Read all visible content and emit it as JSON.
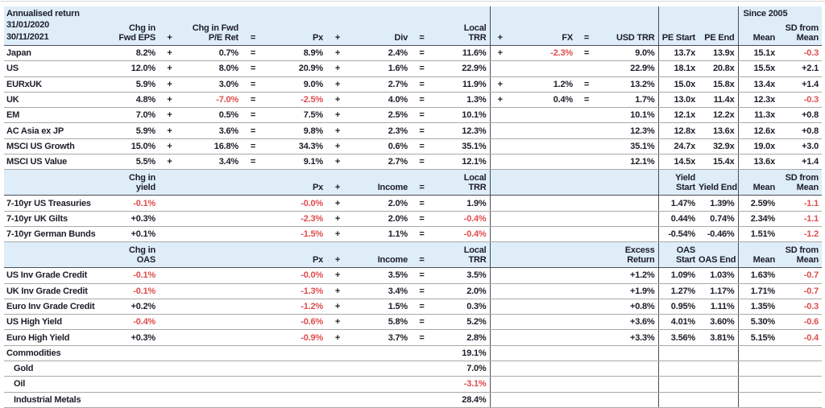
{
  "palette": {
    "header_bg": "#deedf8",
    "text": "#1d1d29",
    "negative_red": "#e14b4b",
    "row_line": "#a9a9a9",
    "section_line": "#4d4d55",
    "background": "#ffffff"
  },
  "chart_data": {
    "type": "table",
    "title": "Annualised return",
    "period": [
      "31/01/2020",
      "30/11/2021"
    ],
    "since_label": "Since 2005",
    "column_keys": [
      "v1",
      "op1",
      "v2",
      "op2",
      "px",
      "op3",
      "div",
      "op4",
      "local-trr",
      "op5",
      "fx",
      "op6",
      "usd-trr",
      "pe-start",
      "pe-end",
      "mean",
      "sd-from-mean"
    ],
    "sections": [
      {
        "name": "equities",
        "header": [
          "Chg in|Fwd EPS",
          "+",
          "Chg in Fwd|P/E Ret",
          "=",
          "Px",
          "+",
          "Div",
          "=",
          "Local|TRR",
          "+",
          "FX",
          "=",
          "USD TRR",
          "PE Start",
          "PE End",
          "Mean",
          "SD from|Mean"
        ],
        "rows": [
          {
            "label": "Japan",
            "indent": false,
            "cells": [
              "8.2%",
              "+",
              "0.7%",
              "=",
              "8.9%",
              "+",
              "2.4%",
              "=",
              "11.6%",
              "+",
              "-2.3%",
              "=",
              "9.0%",
              "13.7x",
              "13.9x",
              "15.1x",
              "-0.3"
            ],
            "neg": [
              10,
              16
            ]
          },
          {
            "label": "US",
            "indent": false,
            "cells": [
              "12.0%",
              "+",
              "8.0%",
              "=",
              "20.9%",
              "+",
              "1.6%",
              "=",
              "22.9%",
              "",
              "",
              "",
              "22.9%",
              "18.1x",
              "20.8x",
              "15.5x",
              "+2.1"
            ],
            "neg": []
          },
          {
            "label": "EURxUK",
            "indent": false,
            "cells": [
              "5.9%",
              "+",
              "3.0%",
              "=",
              "9.0%",
              "+",
              "2.7%",
              "=",
              "11.9%",
              "+",
              "1.2%",
              "=",
              "13.2%",
              "15.0x",
              "15.8x",
              "13.4x",
              "+1.4"
            ],
            "neg": []
          },
          {
            "label": "UK",
            "indent": false,
            "cells": [
              "4.8%",
              "+",
              "-7.0%",
              "=",
              "-2.5%",
              "+",
              "4.0%",
              "=",
              "1.3%",
              "+",
              "0.4%",
              "=",
              "1.7%",
              "13.0x",
              "11.4x",
              "12.3x",
              "-0.3"
            ],
            "neg": [
              2,
              4,
              16
            ]
          },
          {
            "label": "EM",
            "indent": false,
            "cells": [
              "7.0%",
              "+",
              "0.5%",
              "=",
              "7.5%",
              "+",
              "2.5%",
              "=",
              "10.1%",
              "",
              "",
              "",
              "10.1%",
              "12.1x",
              "12.2x",
              "11.3x",
              "+0.8"
            ],
            "neg": []
          },
          {
            "label": "AC Asia ex JP",
            "indent": false,
            "cells": [
              "5.9%",
              "+",
              "3.6%",
              "=",
              "9.8%",
              "+",
              "2.3%",
              "=",
              "12.3%",
              "",
              "",
              "",
              "12.3%",
              "12.8x",
              "13.6x",
              "12.6x",
              "+0.8"
            ],
            "neg": []
          },
          {
            "label": "MSCI US Growth",
            "indent": false,
            "cells": [
              "15.0%",
              "+",
              "16.8%",
              "=",
              "34.3%",
              "+",
              "0.6%",
              "=",
              "35.1%",
              "",
              "",
              "",
              "35.1%",
              "24.7x",
              "32.9x",
              "19.0x",
              "+3.0"
            ],
            "neg": []
          },
          {
            "label": "MSCI US Value",
            "indent": false,
            "cells": [
              "5.5%",
              "+",
              "3.4%",
              "=",
              "9.1%",
              "+",
              "2.7%",
              "=",
              "12.1%",
              "",
              "",
              "",
              "12.1%",
              "14.5x",
              "15.4x",
              "13.6x",
              "+1.4"
            ],
            "neg": []
          }
        ]
      },
      {
        "name": "government_bonds",
        "header": [
          "Chg in|yield",
          "",
          "",
          "",
          "Px",
          "+",
          "Income",
          "=",
          "Local|TRR",
          "",
          "",
          "",
          "",
          "Yield|Start",
          "Yield End",
          "Mean",
          "SD from|Mean"
        ],
        "rows": [
          {
            "label": "7-10yr US Treasuries",
            "indent": false,
            "cells": [
              "-0.1%",
              "",
              "",
              "",
              "-0.0%",
              "+",
              "2.0%",
              "=",
              "1.9%",
              "",
              "",
              "",
              "",
              "1.47%",
              "1.39%",
              "2.59%",
              "-1.1"
            ],
            "neg": [
              0,
              4,
              16
            ]
          },
          {
            "label": "7-10yr UK Gilts",
            "indent": false,
            "cells": [
              "+0.3%",
              "",
              "",
              "",
              "-2.3%",
              "+",
              "2.0%",
              "=",
              "-0.4%",
              "",
              "",
              "",
              "",
              "0.44%",
              "0.74%",
              "2.34%",
              "-1.1"
            ],
            "neg": [
              4,
              8,
              16
            ]
          },
          {
            "label": "7-10yr German Bunds",
            "indent": false,
            "cells": [
              "+0.1%",
              "",
              "",
              "",
              "-1.5%",
              "+",
              "1.1%",
              "=",
              "-0.4%",
              "",
              "",
              "",
              "",
              "-0.54%",
              "-0.46%",
              "1.51%",
              "-1.2"
            ],
            "neg": [
              4,
              8,
              16
            ]
          }
        ]
      },
      {
        "name": "credit",
        "header": [
          "Chg in|OAS",
          "",
          "",
          "",
          "Px",
          "+",
          "Income",
          "=",
          "Local|TRR",
          "",
          "",
          "",
          "Excess|Return",
          "OAS|Start",
          "OAS End",
          "Mean",
          "SD from|Mean"
        ],
        "rows": [
          {
            "label": "US Inv Grade Credit",
            "indent": false,
            "cells": [
              "-0.1%",
              "",
              "",
              "",
              "-0.0%",
              "+",
              "3.5%",
              "=",
              "3.5%",
              "",
              "",
              "",
              "+1.2%",
              "1.09%",
              "1.03%",
              "1.63%",
              "-0.7"
            ],
            "neg": [
              0,
              4,
              16
            ]
          },
          {
            "label": "UK Inv Grade Credit",
            "indent": false,
            "cells": [
              "-0.1%",
              "",
              "",
              "",
              "-1.3%",
              "+",
              "3.4%",
              "=",
              "2.0%",
              "",
              "",
              "",
              "+1.9%",
              "1.27%",
              "1.17%",
              "1.71%",
              "-0.7"
            ],
            "neg": [
              0,
              4,
              16
            ]
          },
          {
            "label": "Euro Inv Grade Credit",
            "indent": false,
            "cells": [
              "+0.2%",
              "",
              "",
              "",
              "-1.2%",
              "+",
              "1.5%",
              "=",
              "0.3%",
              "",
              "",
              "",
              "+0.8%",
              "0.95%",
              "1.11%",
              "1.35%",
              "-0.3"
            ],
            "neg": [
              4,
              16
            ]
          },
          {
            "label": "US High Yield",
            "indent": false,
            "cells": [
              "-0.4%",
              "",
              "",
              "",
              "-0.6%",
              "+",
              "5.8%",
              "=",
              "5.2%",
              "",
              "",
              "",
              "+3.6%",
              "4.01%",
              "3.60%",
              "5.30%",
              "-0.6"
            ],
            "neg": [
              0,
              4,
              16
            ]
          },
          {
            "label": "Euro High Yield",
            "indent": false,
            "cells": [
              "+0.3%",
              "",
              "",
              "",
              "-0.9%",
              "+",
              "3.7%",
              "=",
              "2.8%",
              "",
              "",
              "",
              "+3.3%",
              "3.56%",
              "3.81%",
              "5.15%",
              "-0.4"
            ],
            "neg": [
              4,
              16
            ]
          }
        ]
      },
      {
        "name": "commodities",
        "header": null,
        "rows": [
          {
            "label": "Commodities",
            "indent": false,
            "cells": [
              "",
              "",
              "",
              "",
              "",
              "",
              "",
              "",
              "19.1%",
              "",
              "",
              "",
              "",
              "",
              "",
              "",
              ""
            ],
            "neg": []
          },
          {
            "label": "Gold",
            "indent": true,
            "cells": [
              "",
              "",
              "",
              "",
              "",
              "",
              "",
              "",
              "7.0%",
              "",
              "",
              "",
              "",
              "",
              "",
              "",
              ""
            ],
            "neg": []
          },
          {
            "label": "Oil",
            "indent": true,
            "cells": [
              "",
              "",
              "",
              "",
              "",
              "",
              "",
              "",
              "-3.1%",
              "",
              "",
              "",
              "",
              "",
              "",
              "",
              ""
            ],
            "neg": [
              8
            ]
          },
          {
            "label": "Industrial Metals",
            "indent": true,
            "cells": [
              "",
              "",
              "",
              "",
              "",
              "",
              "",
              "",
              "28.4%",
              "",
              "",
              "",
              "",
              "",
              "",
              "",
              ""
            ],
            "neg": []
          }
        ]
      }
    ]
  }
}
